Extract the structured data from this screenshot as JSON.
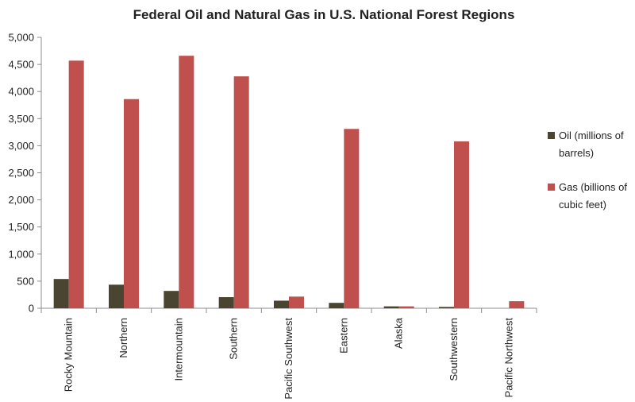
{
  "chart_data": {
    "type": "bar",
    "title": "Federal Oil and Natural Gas in U.S. National Forest Regions",
    "xlabel": "",
    "ylabel": "",
    "categories": [
      "Rocky Mountain",
      "Northern",
      "Intermountain",
      "Southern",
      "Pacific Southwest",
      "Eastern",
      "Alaska",
      "Southwestern",
      "Pacific Northwest"
    ],
    "series": [
      {
        "name": "Oil (millions of barrels)",
        "legend_lines": [
          "Oil (millions of",
          "barrels)"
        ],
        "color": "#4a4531",
        "values": [
          540,
          435,
          320,
          205,
          140,
          100,
          35,
          25,
          0
        ]
      },
      {
        "name": "Gas (billions of cubic feet)",
        "legend_lines": [
          "Gas (billions of",
          "cubic feet)"
        ],
        "color": "#c0504d",
        "values": [
          4570,
          3860,
          4660,
          4280,
          215,
          3310,
          35,
          3080,
          130
        ]
      }
    ],
    "ylim": [
      0,
      5000
    ],
    "yticks": [
      0,
      500,
      1000,
      1500,
      2000,
      2500,
      3000,
      3500,
      4000,
      4500,
      5000
    ],
    "ytick_labels": [
      "0",
      "500",
      "1,000",
      "1,500",
      "2,000",
      "2,500",
      "3,000",
      "3,500",
      "4,000",
      "4,500",
      "5,000"
    ],
    "grid": false,
    "legend_position": "right"
  }
}
